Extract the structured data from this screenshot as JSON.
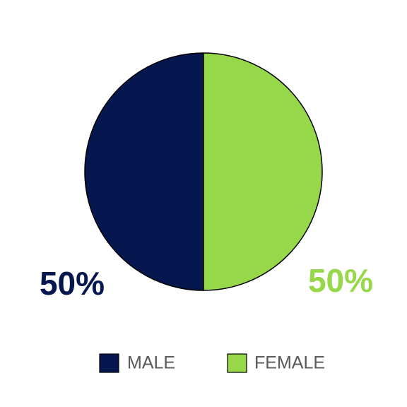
{
  "chart_data": {
    "type": "pie",
    "categories": [
      "MALE",
      "FEMALE"
    ],
    "values": [
      50,
      50
    ],
    "value_labels": [
      "50%",
      "50%"
    ],
    "colors": [
      "#06174f",
      "#97d84a"
    ]
  }
}
